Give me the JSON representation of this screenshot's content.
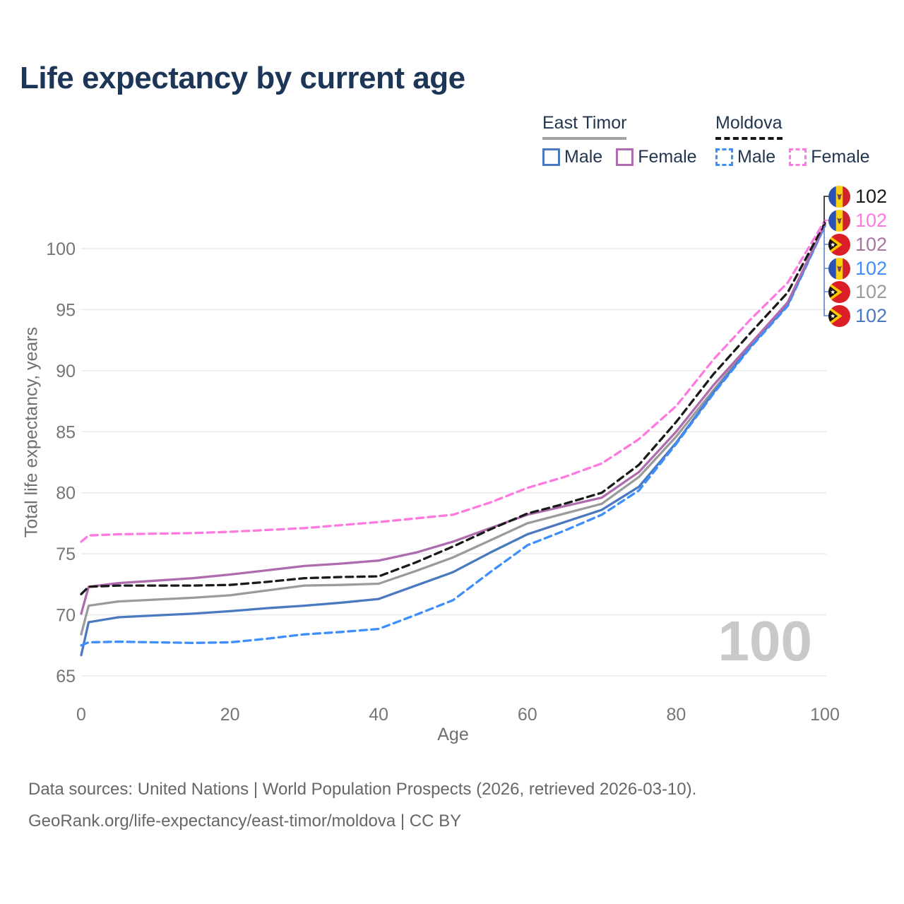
{
  "title": "Life expectancy by current age",
  "legend": {
    "groups": [
      {
        "name": "East Timor",
        "underline_style": "solid",
        "underline_color": "#a3a3a3",
        "items": [
          {
            "label": "Male",
            "color": "#4a79c0",
            "dash": false
          },
          {
            "label": "Female",
            "color": "#ae6cae",
            "dash": false
          }
        ]
      },
      {
        "name": "Moldova",
        "underline_style": "dashed",
        "underline_color": "#161616",
        "items": [
          {
            "label": "Male",
            "color": "#3f8efd",
            "dash": true
          },
          {
            "label": "Female",
            "color": "#ff7ae0",
            "dash": true
          }
        ]
      }
    ]
  },
  "axes": {
    "x": {
      "label": "Age",
      "ticks": [
        0,
        20,
        40,
        60,
        80,
        100
      ],
      "range": [
        0,
        100
      ]
    },
    "y": {
      "label": "Total life expectancy, years",
      "ticks": [
        65,
        70,
        75,
        80,
        85,
        90,
        95,
        100
      ],
      "range": [
        65,
        102.5
      ]
    }
  },
  "watermark": "100",
  "end_labels": [
    {
      "series": "Moldova — Both sexes",
      "flag": "moldova",
      "value": "102",
      "color": "#1a1a1a"
    },
    {
      "series": "Moldova — Female",
      "flag": "moldova",
      "value": "102",
      "color": "#ff7ae0"
    },
    {
      "series": "East Timor — Female",
      "flag": "east-timor",
      "value": "102",
      "color": "#a8759f"
    },
    {
      "series": "Moldova — Male",
      "flag": "moldova",
      "value": "102",
      "color": "#3f8efd"
    },
    {
      "series": "East Timor — Both sexes",
      "flag": "east-timor",
      "value": "102",
      "color": "#9b9b9b"
    },
    {
      "series": "East Timor — Male",
      "flag": "east-timor",
      "value": "102",
      "color": "#4a79c0"
    }
  ],
  "footer": {
    "line1": "Data sources: United Nations | World Population Prospects (2026, retrieved 2026-03-10).",
    "line2": "GeoRank.org/life-expectancy/east-timor/moldova | CC BY"
  },
  "chart_data": {
    "type": "line",
    "title": "Life expectancy by current age",
    "xlabel": "Age",
    "ylabel": "Total life expectancy, years",
    "xlim": [
      0,
      100
    ],
    "ylim": [
      65,
      102.5
    ],
    "grid": "horizontal",
    "legend_position": "top-right",
    "x": [
      0,
      1,
      5,
      10,
      15,
      20,
      25,
      30,
      35,
      40,
      45,
      50,
      55,
      60,
      65,
      70,
      75,
      80,
      85,
      90,
      95,
      100
    ],
    "series": [
      {
        "name": "East Timor — Both sexes",
        "country": "East Timor",
        "sex": "both",
        "style": "solid",
        "color": "#9b9b9b",
        "values": [
          68.4,
          70.75,
          71.1,
          71.25,
          71.4,
          71.6,
          72.0,
          72.4,
          72.45,
          72.55,
          73.6,
          74.7,
          76.1,
          77.5,
          78.3,
          79.1,
          81.3,
          84.6,
          88.4,
          92.1,
          95.5,
          101.95
        ]
      },
      {
        "name": "East Timor — Male",
        "country": "East Timor",
        "sex": "male",
        "style": "solid",
        "color": "#4a79c0",
        "values": [
          66.7,
          69.4,
          69.8,
          69.95,
          70.1,
          70.3,
          70.55,
          70.75,
          71.0,
          71.3,
          72.4,
          73.5,
          75.1,
          76.6,
          77.6,
          78.6,
          80.5,
          84.1,
          88.2,
          92.0,
          95.4,
          101.9
        ]
      },
      {
        "name": "Moldova — Male",
        "country": "Moldova",
        "sex": "male",
        "style": "dashed",
        "color": "#3f8efd",
        "values": [
          67.5,
          67.75,
          67.8,
          67.75,
          67.7,
          67.75,
          68.05,
          68.4,
          68.6,
          68.85,
          70.0,
          71.2,
          73.5,
          75.7,
          76.9,
          78.2,
          80.2,
          84.0,
          88.1,
          91.9,
          95.3,
          101.85
        ]
      },
      {
        "name": "East Timor — Female",
        "country": "East Timor",
        "sex": "female",
        "style": "solid",
        "color": "#ae6cae",
        "values": [
          70.1,
          72.3,
          72.6,
          72.8,
          73.0,
          73.3,
          73.65,
          74.0,
          74.2,
          74.45,
          75.1,
          76.0,
          77.1,
          78.2,
          78.9,
          79.6,
          81.7,
          85.0,
          88.8,
          92.2,
          95.6,
          102.0
        ]
      },
      {
        "name": "Moldova — Both sexes",
        "country": "Moldova",
        "sex": "both",
        "style": "dashed",
        "color": "#1a1a1a",
        "values": [
          71.7,
          72.3,
          72.4,
          72.4,
          72.4,
          72.45,
          72.7,
          73.0,
          73.1,
          73.15,
          74.3,
          75.6,
          77.0,
          78.3,
          79.1,
          80.0,
          82.3,
          85.8,
          89.7,
          93.1,
          96.4,
          102.1
        ]
      },
      {
        "name": "Moldova — Female",
        "country": "Moldova",
        "sex": "female",
        "style": "dashed",
        "color": "#ff7ae0",
        "values": [
          76.0,
          76.5,
          76.6,
          76.65,
          76.7,
          76.8,
          76.95,
          77.1,
          77.35,
          77.6,
          77.9,
          78.2,
          79.2,
          80.4,
          81.3,
          82.4,
          84.4,
          87.1,
          90.9,
          94.2,
          97.2,
          102.3
        ]
      }
    ]
  }
}
